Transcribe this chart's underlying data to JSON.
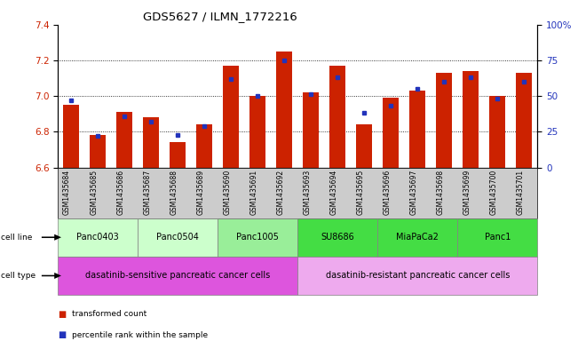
{
  "title": "GDS5627 / ILMN_1772216",
  "samples": [
    "GSM1435684",
    "GSM1435685",
    "GSM1435686",
    "GSM1435687",
    "GSM1435688",
    "GSM1435689",
    "GSM1435690",
    "GSM1435691",
    "GSM1435692",
    "GSM1435693",
    "GSM1435694",
    "GSM1435695",
    "GSM1435696",
    "GSM1435697",
    "GSM1435698",
    "GSM1435699",
    "GSM1435700",
    "GSM1435701"
  ],
  "transformed_counts": [
    6.95,
    6.78,
    6.91,
    6.88,
    6.74,
    6.84,
    7.17,
    7.0,
    7.25,
    7.02,
    7.17,
    6.84,
    6.99,
    7.03,
    7.13,
    7.14,
    7.0,
    7.13
  ],
  "percentile_ranks": [
    47,
    22,
    36,
    32,
    23,
    29,
    62,
    50,
    75,
    51,
    63,
    38,
    43,
    55,
    60,
    63,
    48,
    60
  ],
  "ylim_left": [
    6.6,
    7.4
  ],
  "ylim_right": [
    0,
    100
  ],
  "yticks_left": [
    6.6,
    6.8,
    7.0,
    7.2,
    7.4
  ],
  "yticks_right": [
    0,
    25,
    50,
    75,
    100
  ],
  "ytick_right_labels": [
    "0",
    "25",
    "50",
    "75",
    "100%"
  ],
  "bar_color": "#cc2200",
  "dot_color": "#2233bb",
  "baseline": 6.6,
  "cell_lines": [
    {
      "label": "Panc0403",
      "start": 0,
      "end": 2,
      "color": "#ccffcc"
    },
    {
      "label": "Panc0504",
      "start": 3,
      "end": 5,
      "color": "#ccffcc"
    },
    {
      "label": "Panc1005",
      "start": 6,
      "end": 8,
      "color": "#99ee99"
    },
    {
      "label": "SU8686",
      "start": 9,
      "end": 11,
      "color": "#44dd44"
    },
    {
      "label": "MiaPaCa2",
      "start": 12,
      "end": 14,
      "color": "#44dd44"
    },
    {
      "label": "Panc1",
      "start": 15,
      "end": 17,
      "color": "#44dd44"
    }
  ],
  "cell_types": [
    {
      "label": "dasatinib-sensitive pancreatic cancer cells",
      "start": 0,
      "end": 8,
      "color": "#dd55dd"
    },
    {
      "label": "dasatinib-resistant pancreatic cancer cells",
      "start": 9,
      "end": 17,
      "color": "#eeaaee"
    }
  ],
  "legend_items": [
    {
      "color": "#cc2200",
      "label": "transformed count"
    },
    {
      "color": "#2233bb",
      "label": "percentile rank within the sample"
    }
  ],
  "tick_label_color_left": "#cc2200",
  "tick_label_color_right": "#2233bb",
  "grid_lines": [
    6.8,
    7.0,
    7.2
  ],
  "xtick_bg_color": "#cccccc"
}
